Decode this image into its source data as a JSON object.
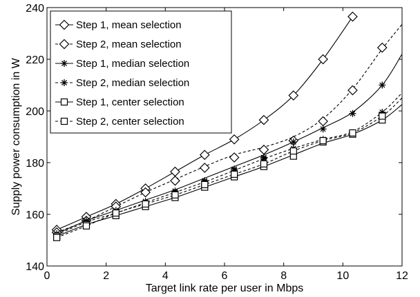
{
  "chart_data": {
    "type": "line",
    "xlabel": "Target link rate per user in Mbps",
    "ylabel": "Supply power consumption in W",
    "xlim": [
      0,
      12
    ],
    "ylim": [
      140,
      240
    ],
    "xticks": [
      0,
      2,
      4,
      6,
      8,
      10,
      12
    ],
    "yticks": [
      140,
      160,
      180,
      200,
      220,
      240
    ],
    "grid": false,
    "legend_position": "top-left",
    "curve_x": [
      0.33,
      1.33,
      2.33,
      3.33,
      4.33,
      5.33,
      6.33,
      7.33,
      8.33,
      9.33,
      10.33,
      11.33,
      12
    ],
    "series": [
      {
        "name": "Step 1, mean selection",
        "marker": "diamond",
        "dash": "solid",
        "x": [
          0.33,
          1.33,
          2.33,
          3.33,
          4.33,
          5.33,
          6.33,
          7.33,
          8.33,
          9.33,
          10.33
        ],
        "y": [
          154,
          159,
          164,
          170,
          176.5,
          183,
          189,
          196.5,
          206,
          220,
          236.5
        ],
        "curve": [
          154,
          159,
          164,
          170,
          176.5,
          183,
          189,
          196.5,
          206,
          220,
          236.5
        ]
      },
      {
        "name": "Step 2, mean selection",
        "marker": "diamond",
        "dash": "dashed",
        "x": [
          0.33,
          1.33,
          2.33,
          3.33,
          4.33,
          5.33,
          6.33,
          7.33,
          8.33,
          9.33,
          10.33,
          11.33
        ],
        "y": [
          153,
          157.5,
          163,
          168.5,
          173,
          178,
          182,
          185,
          188.5,
          196,
          208,
          224.5
        ],
        "curve": [
          153,
          157.5,
          163,
          168.5,
          173.5,
          178.5,
          183,
          186,
          190,
          197,
          208.5,
          224,
          233.5
        ]
      },
      {
        "name": "Step 1, median selection",
        "marker": "star",
        "dash": "solid",
        "x": [
          0.33,
          1.33,
          2.33,
          3.33,
          4.33,
          5.33,
          6.33,
          7.33,
          8.33,
          9.33,
          10.33,
          11.33
        ],
        "y": [
          152.5,
          157.5,
          161.5,
          165,
          169,
          173,
          177.5,
          182,
          188,
          193,
          199,
          210
        ],
        "curve": [
          152.5,
          157.5,
          161.5,
          165.5,
          169.5,
          174,
          178.5,
          183,
          188,
          193.5,
          199.5,
          210,
          222
        ]
      },
      {
        "name": "Step 2, median selection",
        "marker": "star",
        "dash": "dashed",
        "x": [
          0.33,
          1.33,
          2.33,
          3.33,
          4.33,
          5.33,
          6.33,
          7.33,
          8.33,
          9.33,
          10.33,
          11.33
        ],
        "y": [
          152,
          157,
          160.5,
          164.5,
          168.5,
          172.5,
          177,
          181.5,
          185.5,
          189,
          191.5,
          199.5
        ],
        "curve": [
          152,
          157,
          160.5,
          164.5,
          168.5,
          172.5,
          177,
          181.5,
          185.5,
          189,
          192,
          199.5,
          207
        ]
      },
      {
        "name": "Step 1, center selection",
        "marker": "square",
        "dash": "solid",
        "x": [
          0.33,
          1.33,
          2.33,
          3.33,
          4.33,
          5.33,
          6.33,
          7.33,
          8.33,
          9.33,
          10.33,
          11.33
        ],
        "y": [
          151.5,
          156,
          159.5,
          163,
          166.5,
          170.5,
          174.5,
          178.5,
          182.5,
          188,
          191,
          196.5
        ],
        "curve": [
          151.5,
          156,
          159.5,
          163,
          166.5,
          170.5,
          174.5,
          178.5,
          183,
          187.5,
          191,
          196.5,
          202.5
        ]
      },
      {
        "name": "Step 2, center selection",
        "marker": "square",
        "dash": "dashed",
        "x": [
          0.33,
          1.33,
          2.33,
          3.33,
          4.33,
          5.33,
          6.33,
          7.33,
          8.33,
          9.33,
          10.33,
          11.33
        ],
        "y": [
          151,
          155.5,
          160.5,
          164,
          167.5,
          171.5,
          175.5,
          179.5,
          184.5,
          188.5,
          191.5,
          198
        ],
        "curve": [
          151,
          155.5,
          160.5,
          164,
          167.5,
          171.5,
          175.5,
          179.5,
          184.5,
          188.5,
          191.5,
          198,
          205
        ]
      }
    ]
  }
}
